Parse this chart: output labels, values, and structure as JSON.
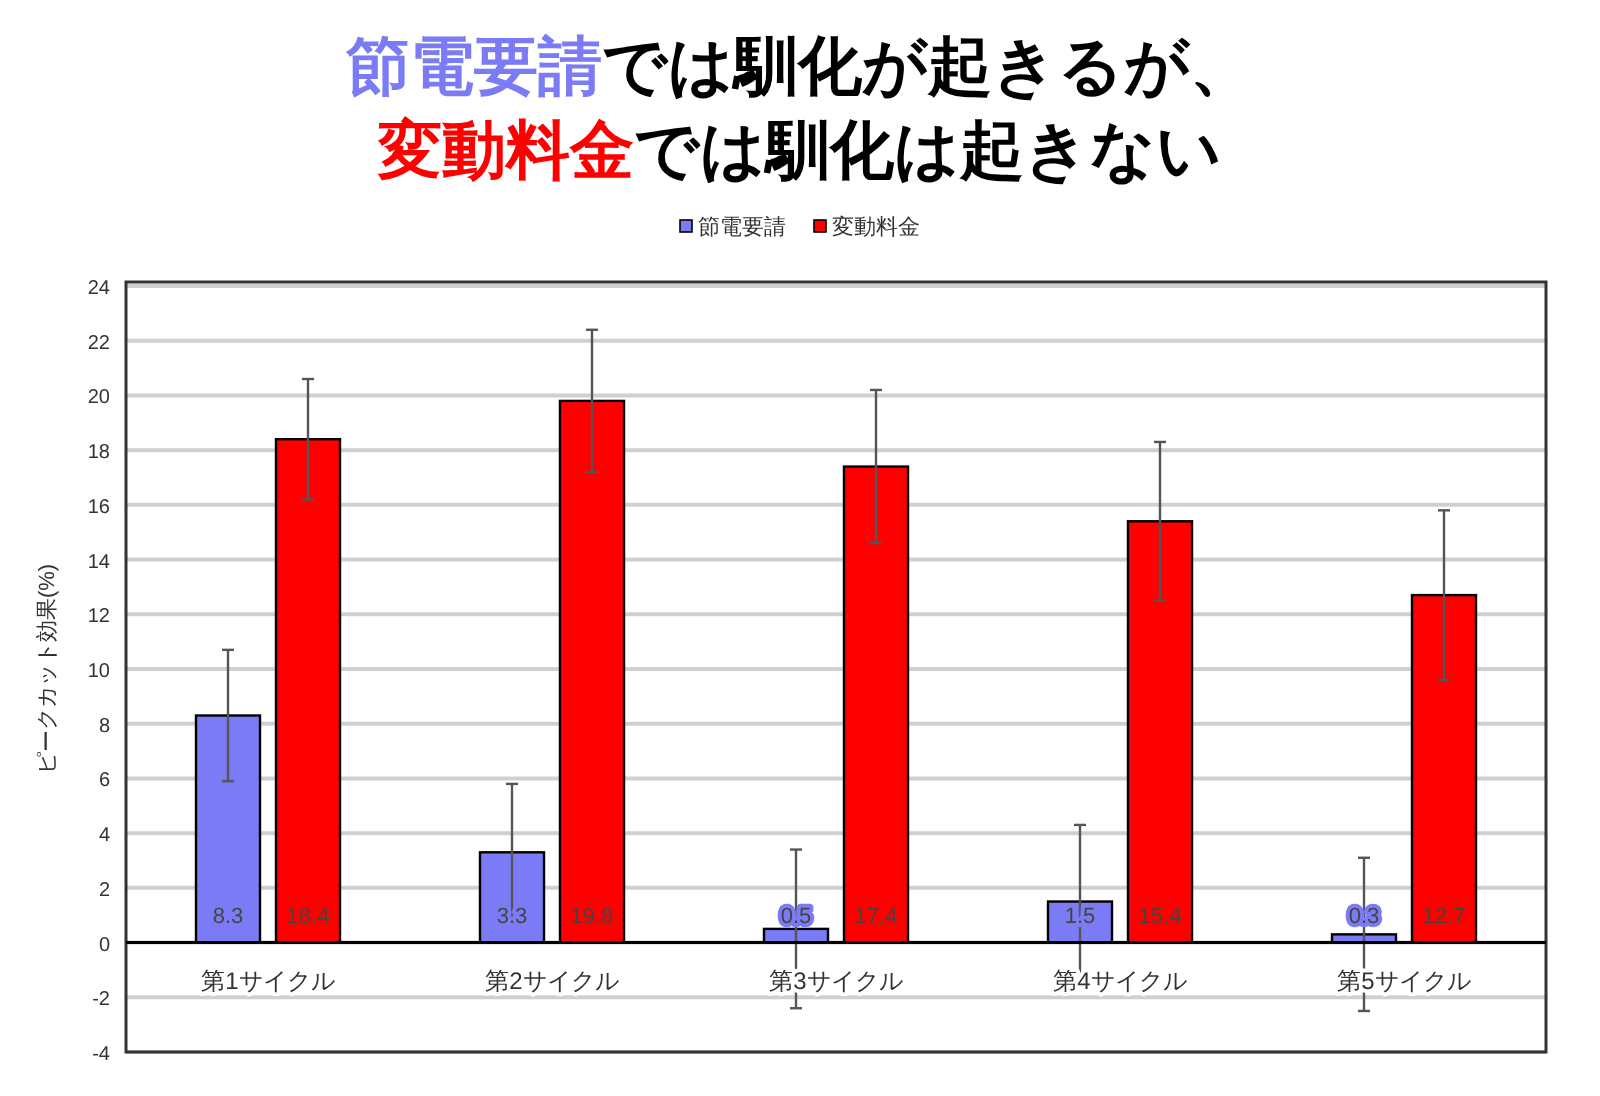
{
  "chart_data": {
    "type": "bar",
    "title": "節電要請では馴化が起きるが、変動料金では馴化は起きない",
    "ylabel": "ピークカット効果(%)",
    "categories": [
      "第1サイクル",
      "第2サイクル",
      "第3サイクル",
      "第4サイクル",
      "第5サイクル"
    ],
    "series": [
      {
        "name": "節電要請",
        "color": "#7b7bf5",
        "values": [
          8.3,
          3.3,
          0.5,
          1.5,
          0.3
        ],
        "errors": [
          2.4,
          2.5,
          2.9,
          2.8,
          2.8
        ]
      },
      {
        "name": "変動料金",
        "color": "#ff0000",
        "values": [
          18.4,
          19.8,
          17.4,
          15.4,
          12.7
        ],
        "errors": [
          2.2,
          2.6,
          2.8,
          2.9,
          3.1
        ]
      }
    ],
    "ylim": [
      -4,
      24
    ],
    "yticks": [
      -4,
      -2,
      0,
      2,
      4,
      6,
      8,
      10,
      12,
      14,
      16,
      18,
      20,
      22,
      24
    ],
    "grid": "y",
    "legend": "top",
    "data_labels": true
  }
}
